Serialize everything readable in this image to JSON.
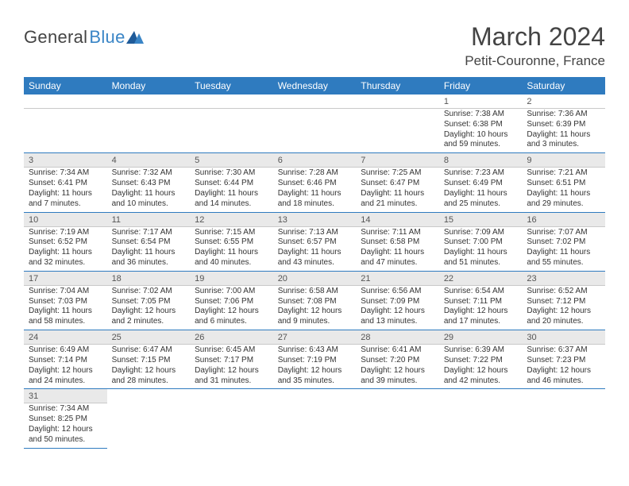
{
  "logo": {
    "general": "General",
    "blue": "Blue"
  },
  "title": "March 2024",
  "location": "Petit-Couronne, France",
  "colors": {
    "accent": "#2f7bbf",
    "logoBlue": "#3a85c6",
    "dayBg": "#e9e9e9"
  },
  "weekdays": [
    "Sunday",
    "Monday",
    "Tuesday",
    "Wednesday",
    "Thursday",
    "Friday",
    "Saturday"
  ],
  "weeks": [
    [
      null,
      null,
      null,
      null,
      null,
      {
        "n": "1",
        "sr": "Sunrise: 7:38 AM",
        "ss": "Sunset: 6:38 PM",
        "d1": "Daylight: 10 hours",
        "d2": "and 59 minutes."
      },
      {
        "n": "2",
        "sr": "Sunrise: 7:36 AM",
        "ss": "Sunset: 6:39 PM",
        "d1": "Daylight: 11 hours",
        "d2": "and 3 minutes."
      }
    ],
    [
      {
        "n": "3",
        "sr": "Sunrise: 7:34 AM",
        "ss": "Sunset: 6:41 PM",
        "d1": "Daylight: 11 hours",
        "d2": "and 7 minutes."
      },
      {
        "n": "4",
        "sr": "Sunrise: 7:32 AM",
        "ss": "Sunset: 6:43 PM",
        "d1": "Daylight: 11 hours",
        "d2": "and 10 minutes."
      },
      {
        "n": "5",
        "sr": "Sunrise: 7:30 AM",
        "ss": "Sunset: 6:44 PM",
        "d1": "Daylight: 11 hours",
        "d2": "and 14 minutes."
      },
      {
        "n": "6",
        "sr": "Sunrise: 7:28 AM",
        "ss": "Sunset: 6:46 PM",
        "d1": "Daylight: 11 hours",
        "d2": "and 18 minutes."
      },
      {
        "n": "7",
        "sr": "Sunrise: 7:25 AM",
        "ss": "Sunset: 6:47 PM",
        "d1": "Daylight: 11 hours",
        "d2": "and 21 minutes."
      },
      {
        "n": "8",
        "sr": "Sunrise: 7:23 AM",
        "ss": "Sunset: 6:49 PM",
        "d1": "Daylight: 11 hours",
        "d2": "and 25 minutes."
      },
      {
        "n": "9",
        "sr": "Sunrise: 7:21 AM",
        "ss": "Sunset: 6:51 PM",
        "d1": "Daylight: 11 hours",
        "d2": "and 29 minutes."
      }
    ],
    [
      {
        "n": "10",
        "sr": "Sunrise: 7:19 AM",
        "ss": "Sunset: 6:52 PM",
        "d1": "Daylight: 11 hours",
        "d2": "and 32 minutes."
      },
      {
        "n": "11",
        "sr": "Sunrise: 7:17 AM",
        "ss": "Sunset: 6:54 PM",
        "d1": "Daylight: 11 hours",
        "d2": "and 36 minutes."
      },
      {
        "n": "12",
        "sr": "Sunrise: 7:15 AM",
        "ss": "Sunset: 6:55 PM",
        "d1": "Daylight: 11 hours",
        "d2": "and 40 minutes."
      },
      {
        "n": "13",
        "sr": "Sunrise: 7:13 AM",
        "ss": "Sunset: 6:57 PM",
        "d1": "Daylight: 11 hours",
        "d2": "and 43 minutes."
      },
      {
        "n": "14",
        "sr": "Sunrise: 7:11 AM",
        "ss": "Sunset: 6:58 PM",
        "d1": "Daylight: 11 hours",
        "d2": "and 47 minutes."
      },
      {
        "n": "15",
        "sr": "Sunrise: 7:09 AM",
        "ss": "Sunset: 7:00 PM",
        "d1": "Daylight: 11 hours",
        "d2": "and 51 minutes."
      },
      {
        "n": "16",
        "sr": "Sunrise: 7:07 AM",
        "ss": "Sunset: 7:02 PM",
        "d1": "Daylight: 11 hours",
        "d2": "and 55 minutes."
      }
    ],
    [
      {
        "n": "17",
        "sr": "Sunrise: 7:04 AM",
        "ss": "Sunset: 7:03 PM",
        "d1": "Daylight: 11 hours",
        "d2": "and 58 minutes."
      },
      {
        "n": "18",
        "sr": "Sunrise: 7:02 AM",
        "ss": "Sunset: 7:05 PM",
        "d1": "Daylight: 12 hours",
        "d2": "and 2 minutes."
      },
      {
        "n": "19",
        "sr": "Sunrise: 7:00 AM",
        "ss": "Sunset: 7:06 PM",
        "d1": "Daylight: 12 hours",
        "d2": "and 6 minutes."
      },
      {
        "n": "20",
        "sr": "Sunrise: 6:58 AM",
        "ss": "Sunset: 7:08 PM",
        "d1": "Daylight: 12 hours",
        "d2": "and 9 minutes."
      },
      {
        "n": "21",
        "sr": "Sunrise: 6:56 AM",
        "ss": "Sunset: 7:09 PM",
        "d1": "Daylight: 12 hours",
        "d2": "and 13 minutes."
      },
      {
        "n": "22",
        "sr": "Sunrise: 6:54 AM",
        "ss": "Sunset: 7:11 PM",
        "d1": "Daylight: 12 hours",
        "d2": "and 17 minutes."
      },
      {
        "n": "23",
        "sr": "Sunrise: 6:52 AM",
        "ss": "Sunset: 7:12 PM",
        "d1": "Daylight: 12 hours",
        "d2": "and 20 minutes."
      }
    ],
    [
      {
        "n": "24",
        "sr": "Sunrise: 6:49 AM",
        "ss": "Sunset: 7:14 PM",
        "d1": "Daylight: 12 hours",
        "d2": "and 24 minutes."
      },
      {
        "n": "25",
        "sr": "Sunrise: 6:47 AM",
        "ss": "Sunset: 7:15 PM",
        "d1": "Daylight: 12 hours",
        "d2": "and 28 minutes."
      },
      {
        "n": "26",
        "sr": "Sunrise: 6:45 AM",
        "ss": "Sunset: 7:17 PM",
        "d1": "Daylight: 12 hours",
        "d2": "and 31 minutes."
      },
      {
        "n": "27",
        "sr": "Sunrise: 6:43 AM",
        "ss": "Sunset: 7:19 PM",
        "d1": "Daylight: 12 hours",
        "d2": "and 35 minutes."
      },
      {
        "n": "28",
        "sr": "Sunrise: 6:41 AM",
        "ss": "Sunset: 7:20 PM",
        "d1": "Daylight: 12 hours",
        "d2": "and 39 minutes."
      },
      {
        "n": "29",
        "sr": "Sunrise: 6:39 AM",
        "ss": "Sunset: 7:22 PM",
        "d1": "Daylight: 12 hours",
        "d2": "and 42 minutes."
      },
      {
        "n": "30",
        "sr": "Sunrise: 6:37 AM",
        "ss": "Sunset: 7:23 PM",
        "d1": "Daylight: 12 hours",
        "d2": "and 46 minutes."
      }
    ],
    [
      {
        "n": "31",
        "sr": "Sunrise: 7:34 AM",
        "ss": "Sunset: 8:25 PM",
        "d1": "Daylight: 12 hours",
        "d2": "and 50 minutes."
      },
      null,
      null,
      null,
      null,
      null,
      null
    ]
  ]
}
